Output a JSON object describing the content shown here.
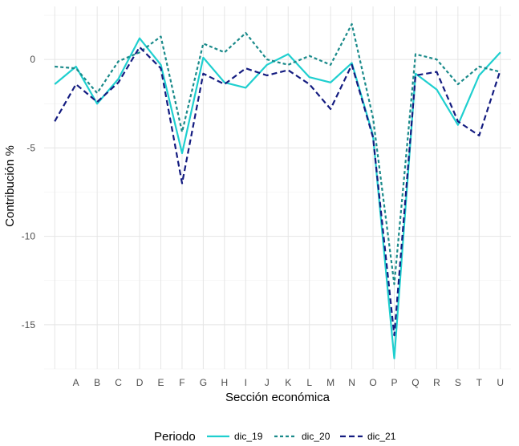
{
  "chart_data": {
    "type": "line",
    "title": "",
    "xlabel": "Sección económica",
    "ylabel": "Contribución %",
    "categories": [
      "",
      "A",
      "B",
      "C",
      "D",
      "E",
      "F",
      "G",
      "H",
      "I",
      "J",
      "K",
      "L",
      "M",
      "N",
      "O",
      "P",
      "Q",
      "R",
      "S",
      "T",
      "U"
    ],
    "ylim": [
      -17.5,
      3
    ],
    "yticks": [
      0,
      -5,
      -10,
      -15
    ],
    "grid": true,
    "legend": {
      "title": "Periodo",
      "position": "bottom",
      "entries": [
        "dic_19",
        "dic_20",
        "dic_21"
      ]
    },
    "series": [
      {
        "name": "dic_19",
        "color": "#1fcfcf",
        "dash": "solid",
        "values": [
          -1.4,
          -0.4,
          -2.5,
          -1.1,
          1.2,
          -0.3,
          -5.3,
          0.1,
          -1.3,
          -1.6,
          -0.3,
          0.3,
          -1.0,
          -1.3,
          -0.2,
          -4.3,
          -16.9,
          -0.8,
          -1.7,
          -3.7,
          -0.9,
          0.4
        ]
      },
      {
        "name": "dic_20",
        "color": "#1a8a8a",
        "dash": "dotted",
        "values": [
          -0.4,
          -0.5,
          -1.9,
          -0.1,
          0.4,
          1.3,
          -4.1,
          0.9,
          0.4,
          1.5,
          0.0,
          -0.3,
          0.2,
          -0.3,
          2.0,
          -3.3,
          -12.7,
          0.3,
          0.0,
          -1.4,
          -0.4,
          -0.7
        ]
      },
      {
        "name": "dic_21",
        "color": "#141c80",
        "dash": "dashed",
        "values": [
          -3.5,
          -1.4,
          -2.4,
          -1.3,
          0.7,
          -0.5,
          -7.0,
          -0.8,
          -1.4,
          -0.5,
          -0.9,
          -0.6,
          -1.4,
          -2.8,
          -0.3,
          -4.4,
          -15.6,
          -0.9,
          -0.7,
          -3.5,
          -4.3,
          -0.6
        ]
      }
    ]
  }
}
